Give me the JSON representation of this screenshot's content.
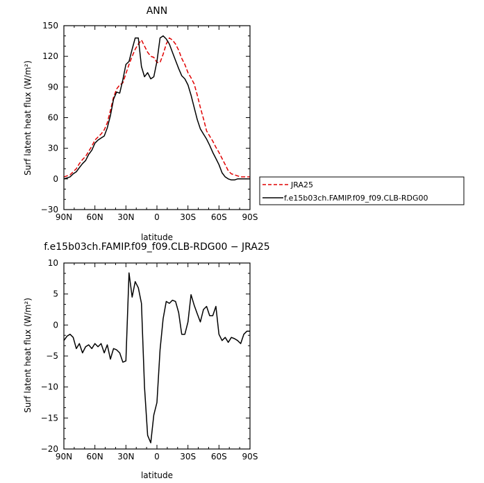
{
  "chart_data": [
    {
      "type": "line",
      "title": "ANN",
      "xlabel": "latitude",
      "ylabel": "Surf latent heat flux (W/m²)",
      "x_ticks": [
        "90N",
        "60N",
        "30N",
        "0",
        "30S",
        "60S",
        "90S"
      ],
      "y_ticks": [
        "−30",
        "0",
        "30",
        "60",
        "90",
        "120",
        "150"
      ],
      "xlim": [
        90,
        -90
      ],
      "ylim": [
        -30,
        150
      ],
      "x": [
        90,
        87,
        84,
        81,
        78,
        75,
        72,
        69,
        66,
        63,
        60,
        57,
        54,
        51,
        48,
        45,
        42,
        39,
        36,
        33,
        30,
        27,
        24,
        21,
        18,
        15,
        12,
        9,
        6,
        3,
        0,
        -3,
        -6,
        -9,
        -12,
        -15,
        -18,
        -21,
        -24,
        -27,
        -30,
        -33,
        -36,
        -39,
        -42,
        -45,
        -48,
        -51,
        -54,
        -57,
        -60,
        -63,
        -66,
        -69,
        -72,
        -75,
        -78,
        -81,
        -84,
        -87,
        -90
      ],
      "series": [
        {
          "name": "JRA25",
          "color": "#e00000",
          "dashed": true,
          "values": [
            2,
            3,
            4,
            7,
            10,
            15,
            19,
            22,
            27,
            32,
            38,
            41,
            44,
            48,
            55,
            67,
            80,
            88,
            92,
            94,
            103,
            112,
            120,
            127,
            132,
            136,
            130,
            124,
            120,
            119,
            114,
            114,
            122,
            132,
            138,
            136,
            132,
            126,
            118,
            112,
            104,
            99,
            93,
            82,
            70,
            59,
            47,
            42,
            37,
            31,
            26,
            20,
            14,
            8,
            5,
            4,
            3,
            2,
            2,
            2,
            2
          ]
        },
        {
          "name": "f.e15b03ch.FAMIP.f09_f09.CLB-RDG00",
          "color": "#000000",
          "dashed": false,
          "values": [
            0,
            1,
            2,
            5,
            7,
            11,
            15,
            18,
            24,
            28,
            35,
            38,
            40,
            42,
            50,
            62,
            78,
            85,
            84,
            97,
            112,
            115,
            127,
            138,
            138,
            110,
            100,
            104,
            98,
            100,
            115,
            138,
            140,
            137,
            132,
            124,
            116,
            108,
            101,
            98,
            92,
            82,
            70,
            58,
            49,
            44,
            39,
            33,
            26,
            20,
            14,
            6,
            2,
            0,
            -1,
            -1,
            0,
            0,
            0,
            0,
            0
          ]
        }
      ],
      "legend": {
        "placement": "right",
        "entries": [
          "JRA25",
          "f.e15b03ch.FAMIP.f09_f09.CLB-RDG00"
        ]
      }
    },
    {
      "type": "line",
      "title": "f.e15b03ch.FAMIP.f09_f09.CLB-RDG00 − JRA25",
      "xlabel": "latitude",
      "ylabel": "Surf latent heat flux (W/m²)",
      "x_ticks": [
        "90N",
        "60N",
        "30N",
        "0",
        "30S",
        "60S",
        "90S"
      ],
      "y_ticks": [
        "−20",
        "−15",
        "−10",
        "−5",
        "0",
        "5",
        "10"
      ],
      "xlim": [
        90,
        -90
      ],
      "ylim": [
        -20,
        10
      ],
      "x": [
        90,
        87,
        84,
        81,
        78,
        75,
        72,
        69,
        66,
        63,
        60,
        57,
        54,
        51,
        48,
        45,
        42,
        39,
        36,
        33,
        30,
        27,
        24,
        21,
        18,
        15,
        12,
        9,
        6,
        3,
        0,
        -3,
        -6,
        -9,
        -12,
        -15,
        -18,
        -21,
        -24,
        -27,
        -30,
        -33,
        -36,
        -39,
        -42,
        -45,
        -48,
        -51,
        -54,
        -57,
        -60,
        -63,
        -66,
        -69,
        -72,
        -75,
        -78,
        -81,
        -84,
        -87,
        -90
      ],
      "series": [
        {
          "color": "#000000",
          "values": [
            -2.5,
            -1.8,
            -1.5,
            -2.0,
            -3.8,
            -3.0,
            -4.5,
            -3.5,
            -3.2,
            -3.8,
            -3.0,
            -3.5,
            -3.0,
            -4.5,
            -3.2,
            -5.5,
            -3.8,
            -4.0,
            -4.5,
            -6.0,
            -5.8,
            8.4,
            4.5,
            7.0,
            6.0,
            3.5,
            -10.0,
            -17.8,
            -19.0,
            -14.5,
            -12.5,
            -4.0,
            1.0,
            3.8,
            3.5,
            4.0,
            3.8,
            2.0,
            -1.5,
            -1.5,
            0.5,
            4.9,
            3.2,
            1.8,
            0.5,
            2.5,
            3.0,
            1.5,
            1.5,
            3.0,
            -1.5,
            -2.5,
            -2.0,
            -2.8,
            -2.0,
            -2.2,
            -2.5,
            -3.0,
            -1.5,
            -1.0,
            -1.0
          ]
        }
      ]
    }
  ]
}
